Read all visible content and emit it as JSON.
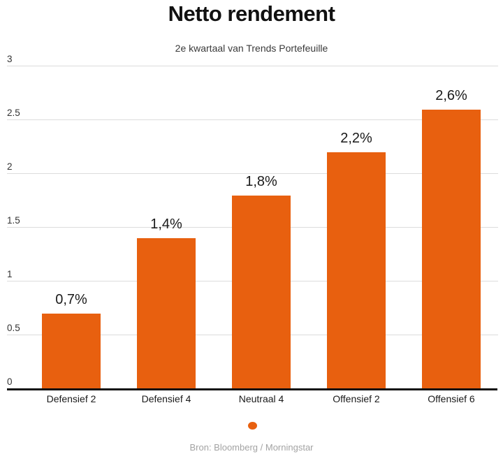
{
  "chart": {
    "title": "Netto rendement",
    "subtitle": "2e kwartaal van Trends Portefeuille",
    "source": "Bron: Bloomberg / Morningstar"
  },
  "chart_data": {
    "type": "bar",
    "title": "Netto rendement",
    "subtitle": "2e kwartaal van Trends Portefeuille",
    "categories": [
      "Defensief 2",
      "Defensief 4",
      "Neutraal 4",
      "Offensief 2",
      "Offensief 6"
    ],
    "values": [
      0.7,
      1.4,
      1.8,
      2.2,
      2.6
    ],
    "value_labels": [
      "0,7%",
      "1,4%",
      "1,8%",
      "2,2%",
      "2,6%"
    ],
    "xlabel": "",
    "ylabel": "",
    "ylim": [
      0,
      3
    ],
    "y_ticks": [
      0,
      0.5,
      1,
      1.5,
      2,
      2.5,
      3
    ],
    "y_tick_labels": [
      "0",
      "0.5",
      "1",
      "1.5",
      "2",
      "2.5",
      "3"
    ],
    "grid": true,
    "legend_position": "bottom",
    "legend_marker_only": true,
    "bar_color": "#E8600F",
    "legend_marker_color": "#E8600F",
    "gridline_color": "#dcdcdc",
    "axis_color": "#111111",
    "source": "Bron: Bloomberg / Morningstar"
  }
}
